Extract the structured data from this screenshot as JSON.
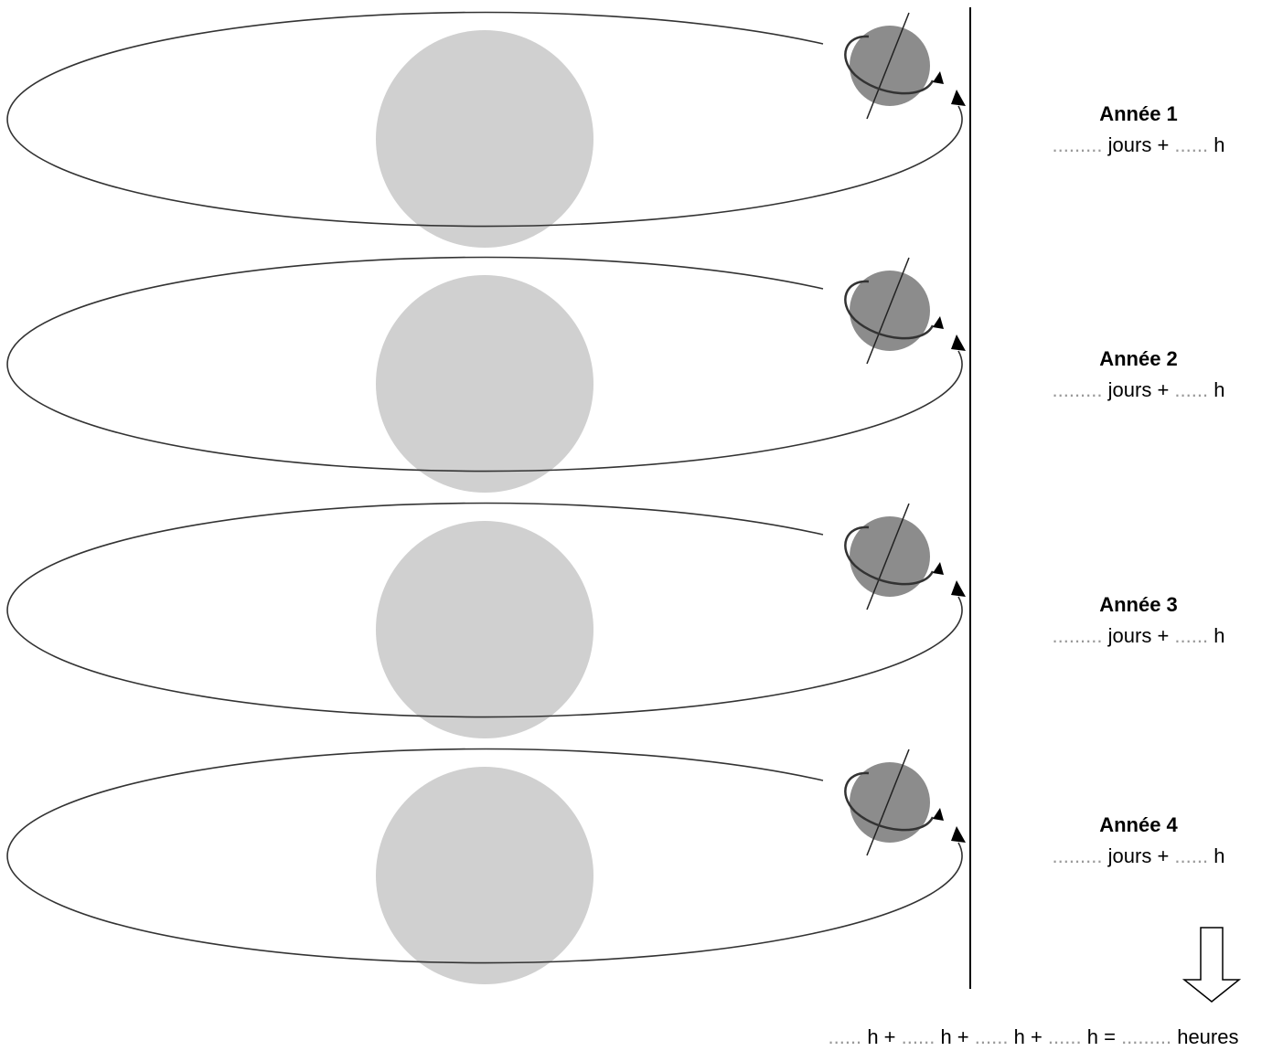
{
  "years": [
    {
      "title": "Année 1",
      "line": [
        ".........",
        "jours +",
        "......",
        "h"
      ]
    },
    {
      "title": "Année 2",
      "line": [
        ".........",
        "jours +",
        "......",
        "h"
      ]
    },
    {
      "title": "Année 3",
      "line": [
        ".........",
        "jours +",
        "......",
        "h"
      ]
    },
    {
      "title": "Année 4",
      "line": [
        ".........",
        "jours +",
        "......",
        "h"
      ]
    }
  ],
  "total": [
    "......",
    "h +",
    "......",
    "h +",
    "......",
    "h +",
    "......",
    "h =",
    ".........",
    "heures"
  ]
}
